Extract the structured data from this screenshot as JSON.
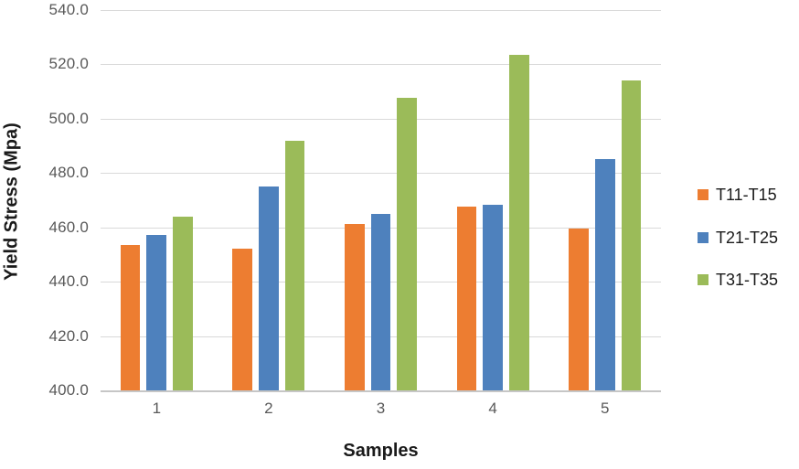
{
  "chart_data": {
    "type": "bar",
    "title": "",
    "xlabel": "Samples",
    "ylabel": "Yield Stress (Mpa)",
    "categories": [
      "1",
      "2",
      "3",
      "4",
      "5"
    ],
    "series": [
      {
        "name": "T11-T15",
        "color": "#ED7D31",
        "values": [
          453.4,
          452.3,
          461.4,
          467.5,
          459.6
        ]
      },
      {
        "name": "T21-T25",
        "color": "#4E81BD",
        "values": [
          457.3,
          474.9,
          465.1,
          468.4,
          485.2
        ]
      },
      {
        "name": "T31-T35",
        "color": "#9BBB59",
        "values": [
          463.8,
          491.8,
          507.7,
          523.4,
          514.0
        ]
      }
    ],
    "ylim": [
      400,
      540
    ],
    "ytick_step": 20,
    "ytick_decimals": 1,
    "grid": true,
    "legend_position": "right"
  },
  "colors": {
    "background": "#FFFFFF",
    "gridline": "#D9D9D9",
    "axis_line": "#C6C6C6",
    "tick_label": "#595959",
    "axis_title": "#1A1A1A",
    "legend_text": "#1A1A1A"
  }
}
